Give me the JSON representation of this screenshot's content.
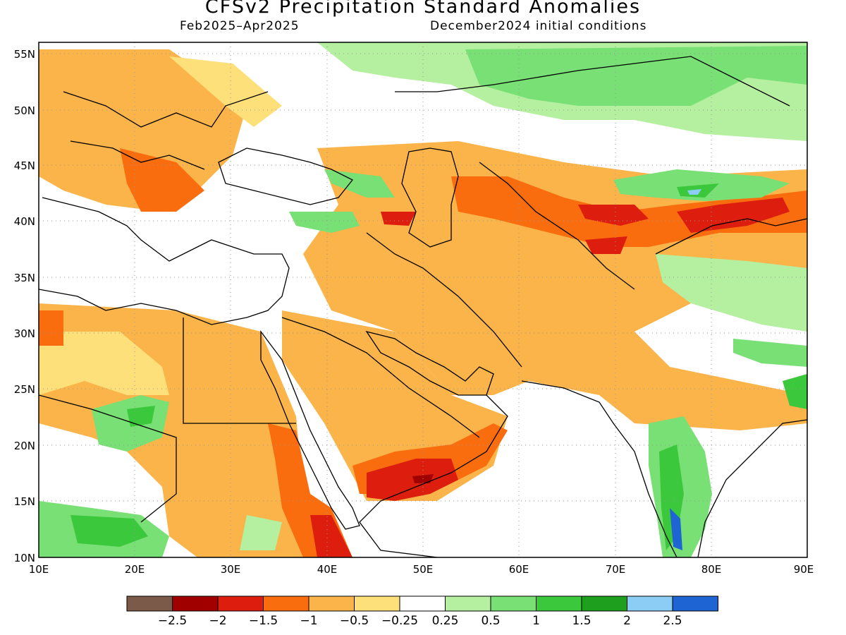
{
  "title": "CFSv2 Precipitation Standard Anomalies",
  "subtitle_left": "Feb2025–Apr2025",
  "subtitle_right": "December2024 initial conditions",
  "lat_ticks": [
    "55N",
    "50N",
    "45N",
    "40N",
    "35N",
    "30N",
    "25N",
    "20N",
    "15N",
    "10N"
  ],
  "lon_ticks": [
    "10E",
    "20E",
    "30E",
    "40E",
    "50E",
    "60E",
    "70E",
    "80E",
    "90E"
  ],
  "legend": {
    "colors": [
      "#7b5a4a",
      "#a00000",
      "#dd1e0f",
      "#fa6d0f",
      "#fbb44a",
      "#fde07a",
      "#ffffff",
      "#b4f0a0",
      "#78e074",
      "#3cc83c",
      "#1ea01e",
      "#8ccdf5",
      "#1e64d2"
    ],
    "labels": [
      "−2.5",
      "−2",
      "−1.5",
      "−1",
      "−0.5",
      "−0.25",
      "0.25",
      "0.5",
      "1",
      "1.5",
      "2",
      "2.5"
    ]
  },
  "colors": {
    "frame": "#000000",
    "grid": "#999999"
  }
}
